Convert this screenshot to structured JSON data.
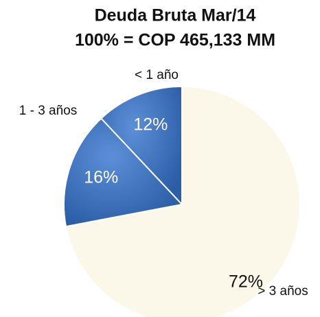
{
  "chart_data": {
    "type": "pie",
    "title": [
      "Deuda Bruta  Mar/14",
      "100% = COP 465,133 MM"
    ],
    "categories": [
      "< 1 año",
      "1 - 3 años",
      "> 3 años"
    ],
    "values": [
      12,
      16,
      72
    ],
    "value_labels": [
      "12%",
      "16%",
      "72%"
    ],
    "colors": [
      "#3b6fb6",
      "#3b6fb6",
      "#fbf8ea"
    ]
  }
}
